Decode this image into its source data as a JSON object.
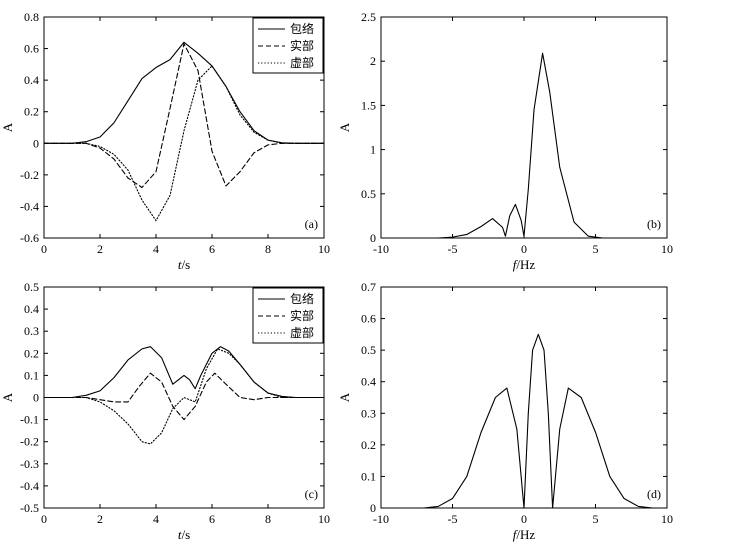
{
  "chart_data": [
    {
      "id": "a",
      "type": "line",
      "panel_label": "(a)",
      "xlabel": "t/s",
      "xlabel_parts": [
        "t",
        "/s"
      ],
      "ylabel": "A",
      "xlim": [
        0,
        10
      ],
      "ylim": [
        -0.6,
        0.8
      ],
      "xticks": [
        0,
        2,
        4,
        6,
        8,
        10
      ],
      "yticks": [
        -0.6,
        -0.4,
        -0.2,
        0,
        0.2,
        0.4,
        0.6,
        0.8
      ],
      "xtick_labels": [
        "0",
        "2",
        "4",
        "6",
        "8",
        "10"
      ],
      "ytick_labels": [
        "-0.6",
        "-0.4",
        "-0.2",
        "0",
        "0.2",
        "0.4",
        "0.6",
        "0.8"
      ],
      "legend": "top-right",
      "grid": false,
      "series": [
        {
          "name": "包络",
          "style": "solid",
          "points": [
            [
              0,
              0
            ],
            [
              1,
              0
            ],
            [
              1.5,
              0.01
            ],
            [
              2,
              0.04
            ],
            [
              2.5,
              0.13
            ],
            [
              3,
              0.27
            ],
            [
              3.5,
              0.41
            ],
            [
              4,
              0.48
            ],
            [
              4.5,
              0.53
            ],
            [
              5,
              0.64
            ],
            [
              5.5,
              0.57
            ],
            [
              6,
              0.49
            ],
            [
              6.5,
              0.36
            ],
            [
              7,
              0.2
            ],
            [
              7.5,
              0.08
            ],
            [
              8,
              0.02
            ],
            [
              8.5,
              0.003
            ],
            [
              9,
              0
            ],
            [
              10,
              0
            ]
          ]
        },
        {
          "name": "实部",
          "style": "dashed",
          "points": [
            [
              0,
              0
            ],
            [
              1.5,
              0
            ],
            [
              2,
              -0.03
            ],
            [
              2.5,
              -0.1
            ],
            [
              3,
              -0.22
            ],
            [
              3.5,
              -0.28
            ],
            [
              4,
              -0.18
            ],
            [
              4.5,
              0.22
            ],
            [
              5,
              0.63
            ],
            [
              5.5,
              0.46
            ],
            [
              6,
              -0.05
            ],
            [
              6.5,
              -0.27
            ],
            [
              7,
              -0.18
            ],
            [
              7.5,
              -0.06
            ],
            [
              8,
              -0.01
            ],
            [
              8.5,
              0
            ],
            [
              10,
              0
            ]
          ]
        },
        {
          "name": "虚部",
          "style": "dotted",
          "points": [
            [
              0,
              0
            ],
            [
              1.5,
              0
            ],
            [
              2,
              -0.02
            ],
            [
              2.5,
              -0.07
            ],
            [
              3,
              -0.17
            ],
            [
              3.5,
              -0.36
            ],
            [
              4,
              -0.49
            ],
            [
              4.5,
              -0.33
            ],
            [
              5,
              0.08
            ],
            [
              5.5,
              0.4
            ],
            [
              6,
              0.49
            ],
            [
              6.5,
              0.36
            ],
            [
              7,
              0.18
            ],
            [
              7.5,
              0.07
            ],
            [
              8,
              0.02
            ],
            [
              8.5,
              0
            ],
            [
              10,
              0
            ]
          ]
        }
      ]
    },
    {
      "id": "b",
      "type": "line",
      "panel_label": "(b)",
      "xlabel": "f/Hz",
      "xlabel_parts": [
        "f",
        "/Hz"
      ],
      "ylabel": "A",
      "xlim": [
        -10,
        10
      ],
      "ylim": [
        0,
        2.5
      ],
      "xticks": [
        -10,
        -5,
        0,
        5,
        10
      ],
      "yticks": [
        0,
        0.5,
        1,
        1.5,
        2,
        2.5
      ],
      "xtick_labels": [
        "-10",
        "-5",
        "0",
        "5",
        "10"
      ],
      "ytick_labels": [
        "0",
        "0.5",
        "1",
        "1.5",
        "2",
        "2.5"
      ],
      "grid": false,
      "series": [
        {
          "style": "solid",
          "points": [
            [
              -10,
              0
            ],
            [
              -6,
              0
            ],
            [
              -5,
              0.01
            ],
            [
              -4,
              0.04
            ],
            [
              -3,
              0.13
            ],
            [
              -2.2,
              0.22
            ],
            [
              -1.5,
              0.12
            ],
            [
              -1.3,
              0.02
            ],
            [
              -1,
              0.25
            ],
            [
              -0.6,
              0.38
            ],
            [
              -0.2,
              0.2
            ],
            [
              0,
              0.02
            ],
            [
              0.3,
              0.55
            ],
            [
              0.7,
              1.45
            ],
            [
              1.3,
              2.09
            ],
            [
              1.8,
              1.65
            ],
            [
              2.5,
              0.8
            ],
            [
              3.5,
              0.18
            ],
            [
              4.5,
              0.02
            ],
            [
              5.5,
              0
            ],
            [
              10,
              0
            ]
          ]
        }
      ]
    },
    {
      "id": "c",
      "type": "line",
      "panel_label": "(c)",
      "xlabel": "t/s",
      "xlabel_parts": [
        "t",
        "/s"
      ],
      "ylabel": "A",
      "xlim": [
        0,
        10
      ],
      "ylim": [
        -0.5,
        0.5
      ],
      "xticks": [
        0,
        2,
        4,
        6,
        8,
        10
      ],
      "yticks": [
        -0.5,
        -0.4,
        -0.3,
        -0.2,
        -0.1,
        0,
        0.1,
        0.2,
        0.3,
        0.4,
        0.5
      ],
      "xtick_labels": [
        "0",
        "2",
        "4",
        "6",
        "8",
        "10"
      ],
      "ytick_labels": [
        "-0.5",
        "-0.4",
        "-0.3",
        "-0.2",
        "-0.1",
        "0",
        "0.1",
        "0.2",
        "0.3",
        "0.4",
        "0.5"
      ],
      "legend": "top-right",
      "grid": false,
      "series": [
        {
          "name": "包络",
          "style": "solid",
          "points": [
            [
              0,
              0
            ],
            [
              1,
              0
            ],
            [
              1.5,
              0.01
            ],
            [
              2,
              0.03
            ],
            [
              2.5,
              0.09
            ],
            [
              3,
              0.17
            ],
            [
              3.5,
              0.22
            ],
            [
              3.8,
              0.23
            ],
            [
              4.2,
              0.18
            ],
            [
              4.6,
              0.06
            ],
            [
              4.8,
              0.08
            ],
            [
              5,
              0.1
            ],
            [
              5.2,
              0.08
            ],
            [
              5.4,
              0.04
            ],
            [
              5.6,
              0.1
            ],
            [
              6,
              0.2
            ],
            [
              6.3,
              0.23
            ],
            [
              6.6,
              0.21
            ],
            [
              7,
              0.15
            ],
            [
              7.5,
              0.07
            ],
            [
              8,
              0.02
            ],
            [
              8.5,
              0.005
            ],
            [
              9,
              0
            ],
            [
              10,
              0
            ]
          ]
        },
        {
          "name": "实部",
          "style": "dashed",
          "points": [
            [
              0,
              0
            ],
            [
              1.5,
              0
            ],
            [
              2,
              -0.01
            ],
            [
              2.5,
              -0.02
            ],
            [
              3,
              -0.02
            ],
            [
              3.4,
              0.05
            ],
            [
              3.8,
              0.11
            ],
            [
              4.2,
              0.07
            ],
            [
              4.6,
              -0.04
            ],
            [
              5,
              -0.1
            ],
            [
              5.4,
              -0.04
            ],
            [
              5.8,
              0.07
            ],
            [
              6.1,
              0.11
            ],
            [
              6.5,
              0.06
            ],
            [
              7,
              0.0
            ],
            [
              7.5,
              -0.01
            ],
            [
              8,
              0
            ],
            [
              10,
              0
            ]
          ]
        },
        {
          "name": "虚部",
          "style": "dotted",
          "points": [
            [
              0,
              0
            ],
            [
              1.5,
              0
            ],
            [
              2,
              -0.02
            ],
            [
              2.5,
              -0.06
            ],
            [
              3,
              -0.12
            ],
            [
              3.5,
              -0.2
            ],
            [
              3.8,
              -0.21
            ],
            [
              4.2,
              -0.16
            ],
            [
              4.6,
              -0.05
            ],
            [
              5,
              0.0
            ],
            [
              5.4,
              -0.02
            ],
            [
              5.8,
              0.13
            ],
            [
              6.2,
              0.22
            ],
            [
              6.6,
              0.2
            ],
            [
              7,
              0.15
            ],
            [
              7.5,
              0.07
            ],
            [
              8,
              0.02
            ],
            [
              8.5,
              0
            ],
            [
              10,
              0
            ]
          ]
        }
      ]
    },
    {
      "id": "d",
      "type": "line",
      "panel_label": "(d)",
      "xlabel": "f/Hz",
      "xlabel_parts": [
        "f",
        "/Hz"
      ],
      "ylabel": "A",
      "xlim": [
        -10,
        10
      ],
      "ylim": [
        0,
        0.7
      ],
      "xticks": [
        -10,
        -5,
        0,
        5,
        10
      ],
      "yticks": [
        0,
        0.1,
        0.2,
        0.3,
        0.4,
        0.5,
        0.6,
        0.7
      ],
      "xtick_labels": [
        "-10",
        "-5",
        "0",
        "5",
        "10"
      ],
      "ytick_labels": [
        "0",
        "0.1",
        "0.2",
        "0.3",
        "0.4",
        "0.5",
        "0.6",
        "0.7"
      ],
      "grid": false,
      "series": [
        {
          "style": "solid",
          "points": [
            [
              -10,
              0
            ],
            [
              -7,
              0
            ],
            [
              -6,
              0.005
            ],
            [
              -5,
              0.03
            ],
            [
              -4,
              0.1
            ],
            [
              -3,
              0.24
            ],
            [
              -2,
              0.35
            ],
            [
              -1.2,
              0.38
            ],
            [
              -0.5,
              0.25
            ],
            [
              0,
              0.0
            ],
            [
              0.3,
              0.3
            ],
            [
              0.6,
              0.5
            ],
            [
              1,
              0.55
            ],
            [
              1.4,
              0.5
            ],
            [
              1.7,
              0.3
            ],
            [
              2,
              0.0
            ],
            [
              2.5,
              0.25
            ],
            [
              3.1,
              0.38
            ],
            [
              4,
              0.35
            ],
            [
              5,
              0.24
            ],
            [
              6,
              0.1
            ],
            [
              7,
              0.03
            ],
            [
              8,
              0.005
            ],
            [
              9,
              0
            ],
            [
              10,
              0
            ]
          ]
        }
      ]
    }
  ]
}
